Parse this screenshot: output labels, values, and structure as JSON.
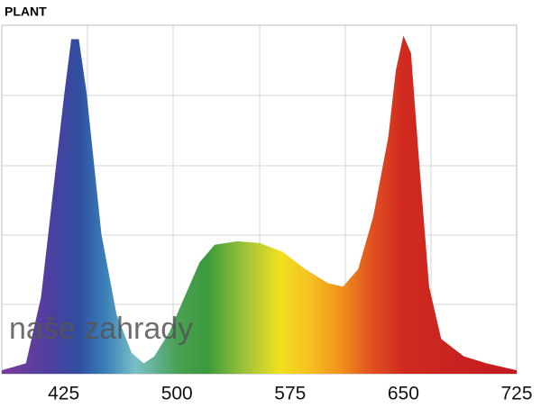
{
  "chart_data": {
    "type": "area",
    "title": "PLANT",
    "watermark": "naše zahrady",
    "x": [
      384,
      400,
      410,
      420,
      425,
      430,
      435,
      440,
      450,
      460,
      470,
      478,
      485,
      495,
      505,
      515,
      525,
      540,
      555,
      570,
      585,
      600,
      610,
      620,
      630,
      640,
      645,
      650,
      655,
      660,
      667,
      675,
      690,
      705,
      725
    ],
    "values": [
      0.01,
      0.03,
      0.22,
      0.6,
      0.79,
      0.96,
      0.96,
      0.81,
      0.4,
      0.17,
      0.06,
      0.03,
      0.05,
      0.12,
      0.22,
      0.32,
      0.37,
      0.38,
      0.375,
      0.35,
      0.3,
      0.26,
      0.25,
      0.3,
      0.45,
      0.68,
      0.87,
      0.97,
      0.92,
      0.63,
      0.25,
      0.1,
      0.05,
      0.03,
      0.01
    ],
    "xlim": [
      384,
      725
    ],
    "ylim": [
      0,
      1
    ],
    "xticks": [
      425,
      500,
      575,
      650,
      725
    ]
  }
}
